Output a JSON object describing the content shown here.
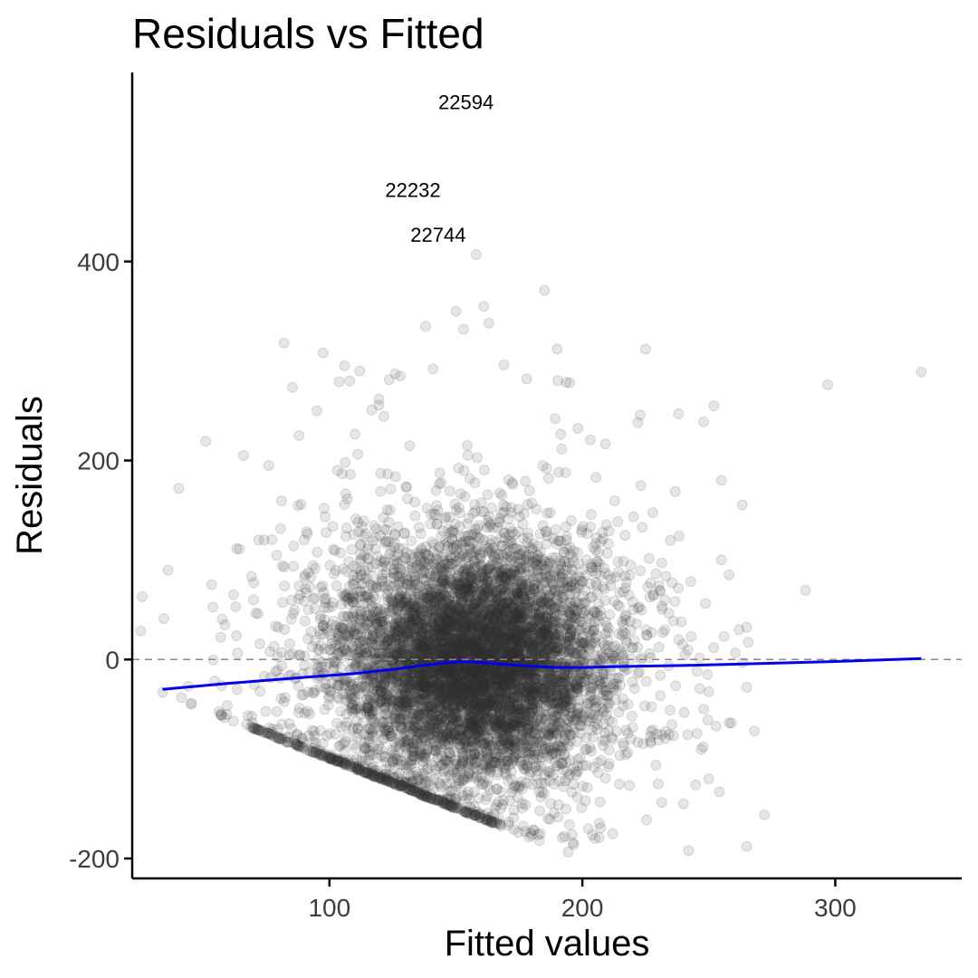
{
  "chart_data": {
    "type": "scatter",
    "title": "Residuals vs Fitted",
    "xlabel": "Fitted values",
    "ylabel": "Residuals",
    "xlim": [
      22,
      350
    ],
    "ylim": [
      -220,
      590
    ],
    "x_ticks": [
      100,
      200,
      300
    ],
    "y_ticks": [
      -200,
      0,
      200,
      400
    ],
    "x_tick_labels": [
      "100",
      "200",
      "300"
    ],
    "y_tick_labels": [
      "-200",
      "0",
      "200",
      "400"
    ],
    "grid": false,
    "legend": "none",
    "reference_line": {
      "y": 0,
      "style": "dashed",
      "color": "#888888"
    },
    "point_color": "#333333",
    "point_opacity": 0.12,
    "smooth_line": {
      "color": "#0000ee",
      "x": [
        34,
        60,
        90,
        110,
        125,
        140,
        152,
        160,
        175,
        190,
        200,
        215,
        240,
        270,
        300,
        334
      ],
      "y": [
        -30,
        -24,
        -18,
        -14,
        -10,
        -5,
        -2,
        -3,
        -6,
        -8,
        -8,
        -7,
        -6,
        -4,
        -2,
        1
      ]
    },
    "density_cloud": {
      "center_x": 158,
      "center_y": -5,
      "sd_x": 25,
      "sd_y": 58,
      "n_points": 6000
    },
    "floor_band": {
      "x_range": [
        68,
        168
      ],
      "y_range": [
        -68,
        -168
      ]
    },
    "outlier_points": [
      {
        "x": 34,
        "y": -33
      },
      {
        "x": 62,
        "y": -62
      },
      {
        "x": 66,
        "y": 205
      },
      {
        "x": 82,
        "y": 318
      },
      {
        "x": 112,
        "y": 290
      },
      {
        "x": 126,
        "y": 287
      },
      {
        "x": 138,
        "y": 335
      },
      {
        "x": 141,
        "y": 292
      },
      {
        "x": 150,
        "y": 350
      },
      {
        "x": 153,
        "y": 332
      },
      {
        "x": 158,
        "y": 407
      },
      {
        "x": 161,
        "y": 355
      },
      {
        "x": 163,
        "y": 338
      },
      {
        "x": 169,
        "y": 296
      },
      {
        "x": 178,
        "y": 282
      },
      {
        "x": 185,
        "y": 371
      },
      {
        "x": 190,
        "y": 312
      },
      {
        "x": 195,
        "y": 278
      },
      {
        "x": 225,
        "y": 312
      },
      {
        "x": 222,
        "y": 238
      },
      {
        "x": 238,
        "y": 247
      },
      {
        "x": 248,
        "y": 239
      },
      {
        "x": 252,
        "y": 255
      },
      {
        "x": 297,
        "y": 276
      },
      {
        "x": 334,
        "y": 289
      },
      {
        "x": 255,
        "y": 180
      },
      {
        "x": 258,
        "y": 85
      },
      {
        "x": 262,
        "y": 30
      },
      {
        "x": 265,
        "y": -28
      },
      {
        "x": 268,
        "y": -72
      },
      {
        "x": 272,
        "y": -156
      },
      {
        "x": 265,
        "y": -188
      },
      {
        "x": 242,
        "y": -192
      },
      {
        "x": 240,
        "y": -145
      },
      {
        "x": 230,
        "y": -125
      },
      {
        "x": 212,
        "y": -175
      },
      {
        "x": 205,
        "y": -180
      },
      {
        "x": 196,
        "y": -176
      },
      {
        "x": 183,
        "y": -182
      },
      {
        "x": 250,
        "y": -120
      },
      {
        "x": 248,
        "y": -50
      },
      {
        "x": 255,
        "y": 100
      },
      {
        "x": 72,
        "y": 120
      },
      {
        "x": 70,
        "y": 60
      },
      {
        "x": 76,
        "y": 195
      },
      {
        "x": 88,
        "y": 225
      },
      {
        "x": 95,
        "y": 250
      },
      {
        "x": 108,
        "y": 280
      }
    ],
    "annotations": [
      {
        "label": "22594",
        "x": 154,
        "y": 553
      },
      {
        "label": "22232",
        "x": 133,
        "y": 465
      },
      {
        "label": "22744",
        "x": 143,
        "y": 420
      }
    ]
  }
}
